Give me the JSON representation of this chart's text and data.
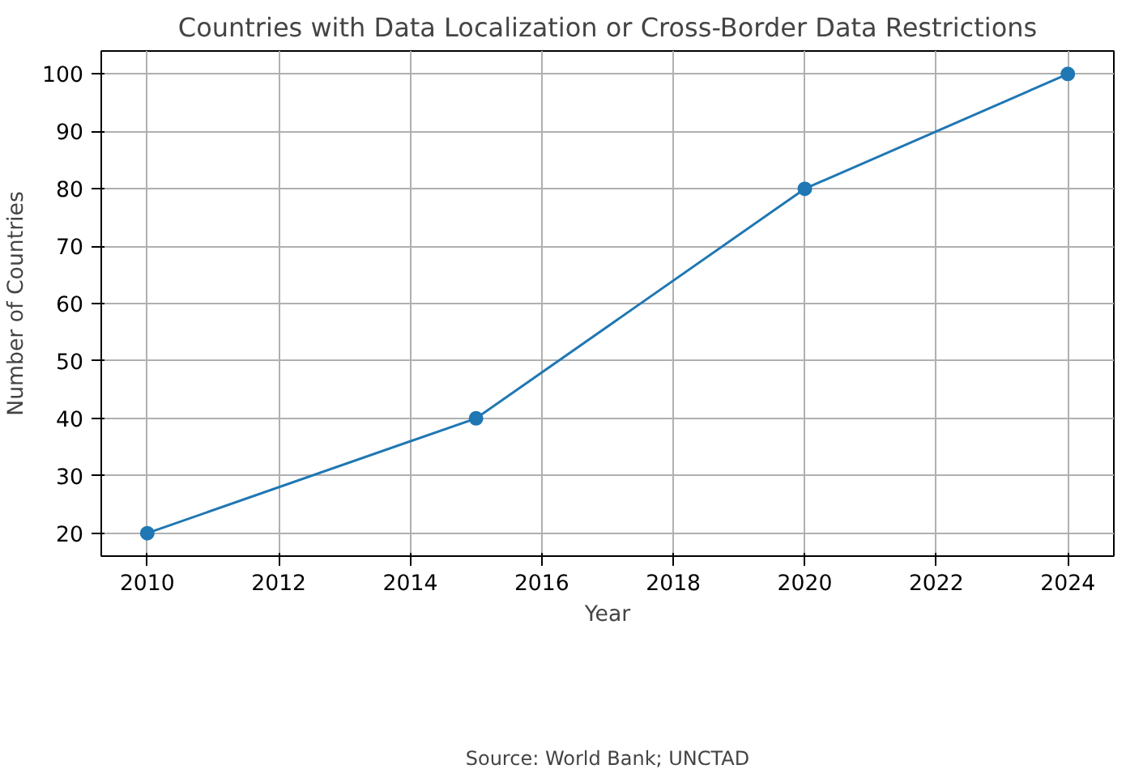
{
  "chart_data": {
    "type": "line",
    "title": "Countries with Data Localization or Cross-Border Data Restrictions",
    "xlabel": "Year",
    "ylabel": "Number of Countries",
    "annotations": [
      "Source: World Bank; UNCTAD"
    ],
    "x": [
      2010,
      2015,
      2020,
      2024
    ],
    "series": [
      {
        "color": "#1f77b4",
        "values": [
          20,
          40,
          80,
          100
        ]
      }
    ],
    "xlim": [
      2009.3,
      2024.7
    ],
    "ylim": [
      16,
      104
    ],
    "xticks": [
      2010,
      2012,
      2014,
      2016,
      2018,
      2020,
      2022,
      2024
    ],
    "yticks": [
      20,
      30,
      40,
      50,
      60,
      70,
      80,
      90,
      100
    ],
    "grid": true,
    "marker": "circle",
    "line_style": "solid"
  }
}
